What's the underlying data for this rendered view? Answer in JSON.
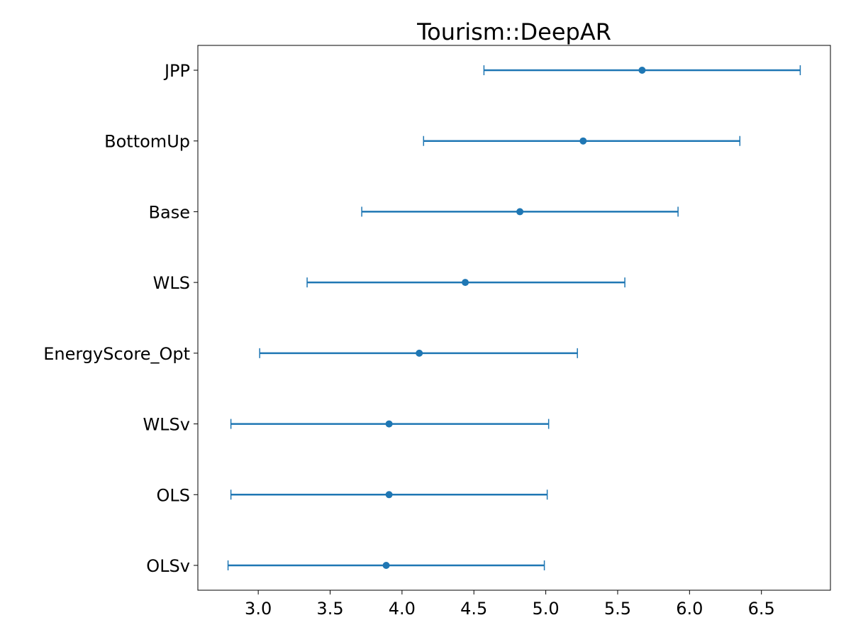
{
  "chart_data": {
    "type": "scatter",
    "title": "Tourism::DeepAR",
    "xlabel": "",
    "ylabel": "",
    "xlim": [
      2.58,
      6.98
    ],
    "x_ticks": [
      "3.0",
      "3.5",
      "4.0",
      "4.5",
      "5.0",
      "5.5",
      "6.0",
      "6.5"
    ],
    "x_tick_values": [
      3.0,
      3.5,
      4.0,
      4.5,
      5.0,
      5.5,
      6.0,
      6.5
    ],
    "grid": false,
    "series": [
      {
        "categories": [
          "JPP",
          "BottomUp",
          "Base",
          "WLS",
          "EnergyScore_Opt",
          "WLSv",
          "OLS",
          "OLSv"
        ],
        "values": [
          5.67,
          5.26,
          4.82,
          4.44,
          4.12,
          3.91,
          3.91,
          3.89
        ],
        "lower": [
          4.57,
          4.15,
          3.72,
          3.34,
          3.01,
          2.81,
          2.81,
          2.79
        ],
        "upper": [
          6.77,
          6.35,
          5.92,
          5.55,
          5.22,
          5.02,
          5.01,
          4.99
        ]
      }
    ],
    "colors": {
      "series": "#1f77b4",
      "axes": "#000000"
    }
  }
}
